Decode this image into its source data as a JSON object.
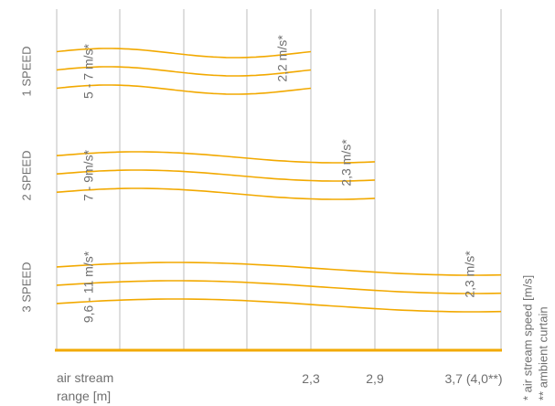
{
  "chart_data": {
    "type": "line",
    "title": "",
    "x_tick_labels": [
      "2,3",
      "2,9",
      "3,7 (4,0**)"
    ],
    "xlabel_line1": "air stream",
    "xlabel_line2": "range [m]",
    "footnotes": [
      "* air stream speed [m/s]",
      "** ambient curtain"
    ],
    "line_color": "#f2a900",
    "grid_color": "#c9c9c9",
    "series": [
      {
        "name": "1 SPEED",
        "start_speed_label": "5 - 7 m/s*",
        "end_speed_label": "2,2 m/s*",
        "range": 2.3
      },
      {
        "name": "2 SPEED",
        "start_speed_label": "7 - 9m/s*",
        "end_speed_label": "2,3 m/s*",
        "range": 2.9
      },
      {
        "name": "3 SPEED",
        "start_speed_label": "9,6 - 11 m/s*",
        "end_speed_label": "2,3 m/s*",
        "range": 4.0
      }
    ]
  }
}
